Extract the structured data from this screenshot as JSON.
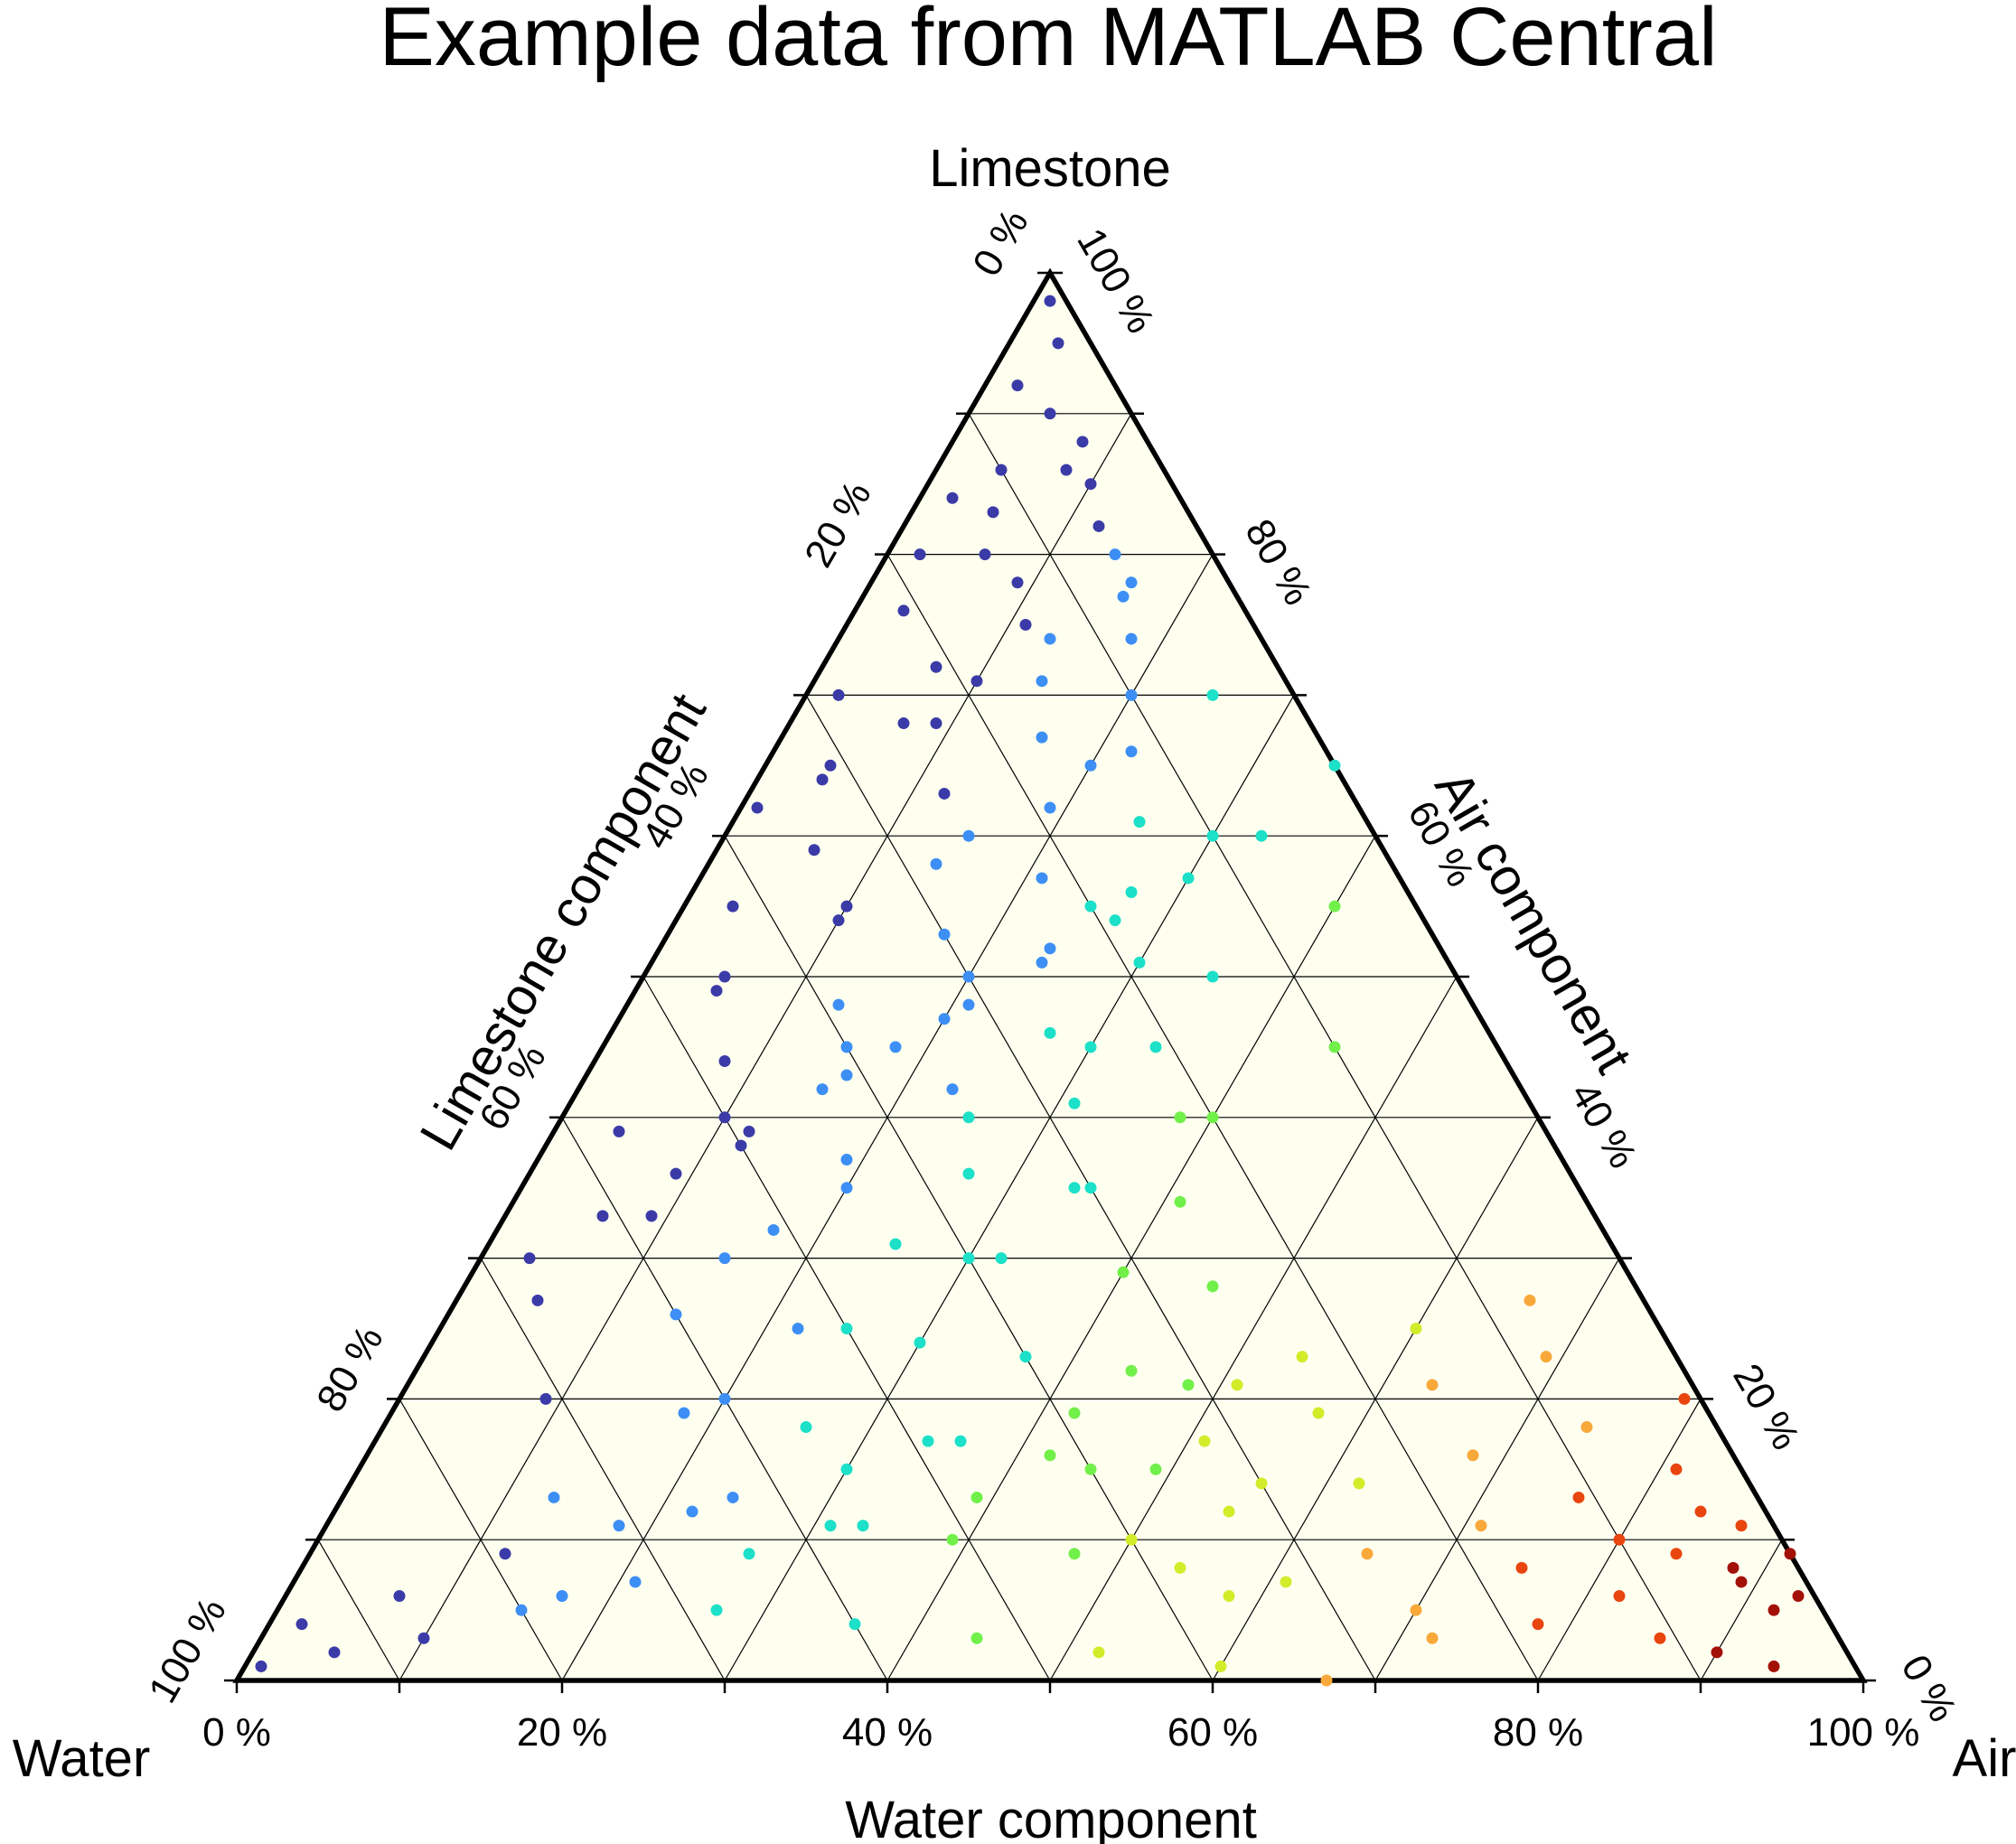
{
  "chart_data": {
    "type": "scatter",
    "subtype": "ternary",
    "title": "Example data from MATLAB Central",
    "corners": {
      "top": "Limestone",
      "left": "Water",
      "right": "Air"
    },
    "axes": {
      "water": {
        "label": "Water component",
        "ticks": [
          "0 %",
          "20 %",
          "40 %",
          "60 %",
          "80 %",
          "100 %"
        ]
      },
      "limestone": {
        "label": "Limestone component",
        "ticks": [
          "100 %",
          "80 %",
          "60 %",
          "40 %",
          "20 %",
          "0 %"
        ]
      },
      "air": {
        "label": "Air component",
        "ticks": [
          "0 %",
          "20 %",
          "40 %",
          "60 %",
          "80 %",
          "100 %"
        ]
      }
    },
    "grid": true,
    "grid_step_percent": 10,
    "background_color": "#fffff0",
    "color_encoding": "point color follows the Air component (blue low to dark red high)",
    "colormap": [
      "#3b3ba8",
      "#3d8ff5",
      "#1ce0c8",
      "#72f04a",
      "#d2ec2a",
      "#f9a83a",
      "#e8450f",
      "#a31106"
    ],
    "points": [
      [
        1,
        98,
        1
      ],
      [
        3,
        95,
        2
      ],
      [
        2,
        92,
        6
      ],
      [
        5,
        90,
        5
      ],
      [
        8,
        88,
        4
      ],
      [
        4,
        86,
        10
      ],
      [
        10,
        85,
        5
      ],
      [
        12,
        82,
        6
      ],
      [
        6,
        80,
        14
      ],
      [
        14,
        80,
        6
      ],
      [
        2,
        84,
        14
      ],
      [
        9,
        78,
        13
      ],
      [
        16,
        78,
        6
      ],
      [
        3,
        76,
        21
      ],
      [
        11,
        75,
        14
      ],
      [
        18,
        74,
        8
      ],
      [
        7,
        72,
        21
      ],
      [
        14,
        71,
        15
      ],
      [
        20,
        70,
        10
      ],
      [
        2,
        70,
        28
      ],
      [
        9,
        68,
        23
      ],
      [
        16,
        67,
        17
      ],
      [
        22,
        66,
        12
      ],
      [
        4,
        64,
        32
      ],
      [
        12,
        63,
        25
      ],
      [
        19,
        62,
        19
      ],
      [
        25,
        61,
        14
      ],
      [
        6,
        59,
        35
      ],
      [
        14,
        58,
        28
      ],
      [
        21,
        57,
        22
      ],
      [
        27,
        56,
        17
      ],
      [
        3,
        55,
        42
      ],
      [
        10,
        54,
        36
      ],
      [
        17,
        53,
        30
      ],
      [
        24,
        52,
        24
      ],
      [
        30,
        51,
        19
      ],
      [
        5,
        49,
        46
      ],
      [
        13,
        48,
        39
      ],
      [
        20,
        47,
        33
      ],
      [
        27,
        46,
        27
      ],
      [
        34,
        45,
        21
      ],
      [
        8,
        44,
        48
      ],
      [
        16,
        43,
        41
      ],
      [
        23,
        42,
        35
      ],
      [
        31,
        41,
        28
      ],
      [
        38,
        40,
        22
      ],
      [
        4,
        39,
        57
      ],
      [
        12,
        38,
        50
      ],
      [
        19,
        37,
        44
      ],
      [
        27,
        36,
        37
      ],
      [
        34,
        35,
        31
      ],
      [
        41,
        34,
        25
      ],
      [
        9,
        33,
        58
      ],
      [
        17,
        32,
        51
      ],
      [
        25,
        31,
        44
      ],
      [
        32,
        30,
        38
      ],
      [
        40,
        29,
        31
      ],
      [
        46,
        28,
        26
      ],
      [
        5,
        27,
        68
      ],
      [
        14,
        26,
        60
      ],
      [
        22,
        25,
        53
      ],
      [
        30,
        24,
        46
      ],
      [
        37,
        23,
        40
      ],
      [
        44,
        22,
        34
      ],
      [
        51,
        21,
        28
      ],
      [
        9,
        20,
        71
      ],
      [
        18,
        19,
        63
      ],
      [
        26,
        18,
        56
      ],
      [
        34,
        17,
        49
      ],
      [
        42,
        16,
        42
      ],
      [
        49,
        15,
        36
      ],
      [
        56,
        14,
        30
      ],
      [
        13,
        13,
        74
      ],
      [
        22,
        12,
        66
      ],
      [
        31,
        11,
        58
      ],
      [
        39,
        10,
        51
      ],
      [
        47,
        9,
        44
      ],
      [
        54,
        8,
        38
      ],
      [
        61,
        7,
        32
      ],
      [
        17,
        6,
        77
      ],
      [
        27,
        5,
        68
      ],
      [
        36,
        4,
        60
      ],
      [
        44,
        3,
        53
      ],
      [
        52,
        2,
        46
      ],
      [
        60,
        1,
        39
      ],
      [
        67,
        0,
        33
      ],
      [
        70,
        5,
        25
      ],
      [
        72,
        3,
        25
      ],
      [
        75,
        8,
        17
      ],
      [
        78,
        4,
        18
      ],
      [
        80,
        10,
        10
      ],
      [
        82,
        6,
        12
      ],
      [
        84,
        12,
        4
      ],
      [
        86,
        3,
        11
      ],
      [
        88,
        8,
        4
      ],
      [
        90,
        2,
        8
      ],
      [
        92,
        5,
        3
      ],
      [
        94,
        1,
        5
      ],
      [
        1,
        1,
        98
      ],
      [
        2,
        4,
        94
      ],
      [
        5,
        2,
        93
      ],
      [
        7,
        6,
        87
      ],
      [
        10,
        3,
        87
      ],
      [
        12,
        9,
        79
      ],
      [
        15,
        5,
        80
      ],
      [
        18,
        11,
        71
      ],
      [
        21,
        7,
        72
      ],
      [
        24,
        13,
        63
      ],
      [
        27,
        9,
        64
      ],
      [
        30,
        15,
        55
      ],
      [
        33,
        11,
        56
      ],
      [
        36,
        17,
        47
      ],
      [
        39,
        13,
        48
      ],
      [
        42,
        19,
        39
      ],
      [
        45,
        15,
        40
      ],
      [
        48,
        21,
        31
      ],
      [
        51,
        17,
        32
      ],
      [
        54,
        23,
        23
      ],
      [
        57,
        19,
        24
      ],
      [
        60,
        25,
        15
      ],
      [
        63,
        21,
        16
      ],
      [
        66,
        27,
        7
      ],
      [
        69,
        23,
        8
      ],
      [
        72,
        29,
        -1
      ],
      [
        3,
        30,
        67
      ],
      [
        6,
        33,
        61
      ],
      [
        9,
        36,
        55
      ],
      [
        12,
        39,
        49
      ],
      [
        15,
        42,
        43
      ],
      [
        18,
        45,
        37
      ],
      [
        21,
        48,
        31
      ],
      [
        24,
        51,
        25
      ],
      [
        27,
        54,
        19
      ],
      [
        30,
        57,
        13
      ],
      [
        33,
        60,
        7
      ],
      [
        1,
        62,
        37
      ],
      [
        4,
        65,
        31
      ],
      [
        7,
        68,
        25
      ],
      [
        10,
        71,
        19
      ],
      [
        13,
        74,
        13
      ],
      [
        16,
        77,
        7
      ],
      [
        2,
        80,
        18
      ],
      [
        5,
        83,
        12
      ],
      [
        8,
        86,
        6
      ],
      [
        20,
        20,
        60
      ],
      [
        25,
        25,
        50
      ],
      [
        30,
        30,
        40
      ],
      [
        35,
        35,
        30
      ],
      [
        40,
        40,
        20
      ],
      [
        45,
        45,
        10
      ],
      [
        15,
        30,
        55
      ],
      [
        20,
        35,
        45
      ],
      [
        25,
        40,
        35
      ],
      [
        30,
        45,
        25
      ],
      [
        35,
        50,
        15
      ],
      [
        40,
        55,
        5
      ],
      [
        10,
        40,
        50
      ],
      [
        15,
        45,
        40
      ],
      [
        20,
        50,
        30
      ],
      [
        25,
        55,
        20
      ],
      [
        30,
        60,
        10
      ],
      [
        35,
        65,
        0
      ],
      [
        5,
        50,
        45
      ],
      [
        10,
        55,
        35
      ],
      [
        15,
        60,
        25
      ],
      [
        20,
        65,
        15
      ],
      [
        25,
        70,
        5
      ],
      [
        50,
        10,
        40
      ],
      [
        55,
        12,
        33
      ],
      [
        58,
        6,
        36
      ],
      [
        62,
        14,
        24
      ],
      [
        65,
        9,
        26
      ],
      [
        68,
        16,
        16
      ],
      [
        71,
        11,
        18
      ],
      [
        74,
        18,
        8
      ],
      [
        76,
        13,
        11
      ],
      [
        79,
        20,
        1
      ],
      [
        81,
        15,
        4
      ],
      [
        84,
        9,
        7
      ],
      [
        87,
        11,
        2
      ],
      [
        89,
        7,
        4
      ],
      [
        91,
        9,
        0
      ],
      [
        93,
        6,
        1
      ]
    ]
  }
}
